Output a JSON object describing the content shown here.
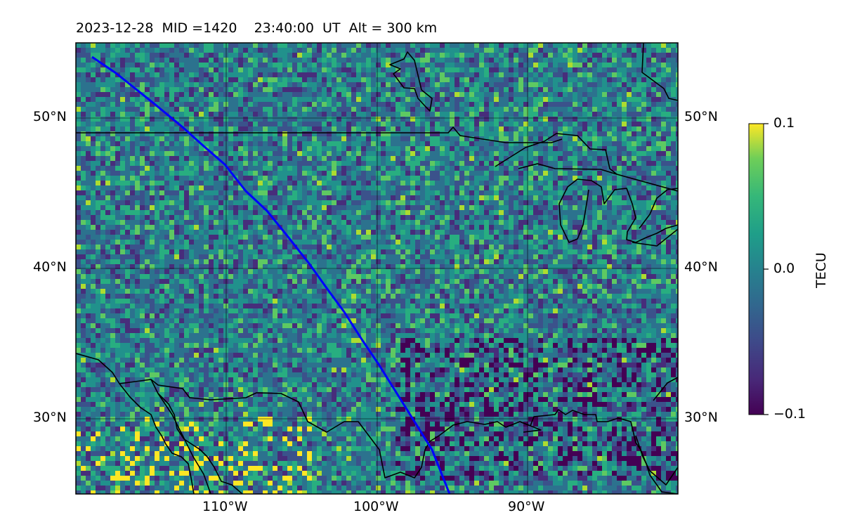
{
  "title": "2023-12-28  MID =1420    23:40:00  UT  Alt = 300 km",
  "map": {
    "lon_range": [
      -120,
      -80
    ],
    "lat_range": [
      25,
      55
    ],
    "lat_labels": [
      "50°N",
      "40°N",
      "30°N"
    ],
    "lon_labels": [
      "110°W",
      "100°W",
      "90°W"
    ],
    "track_color": "#0000ff",
    "coastline_color": "#000000",
    "gridline_color": "#000000"
  },
  "colorbar": {
    "label": "TECU",
    "ticks": [
      "0.1",
      "0.0",
      "−0.1"
    ],
    "colormap": "viridis",
    "range": [
      -0.1,
      0.1
    ]
  }
}
